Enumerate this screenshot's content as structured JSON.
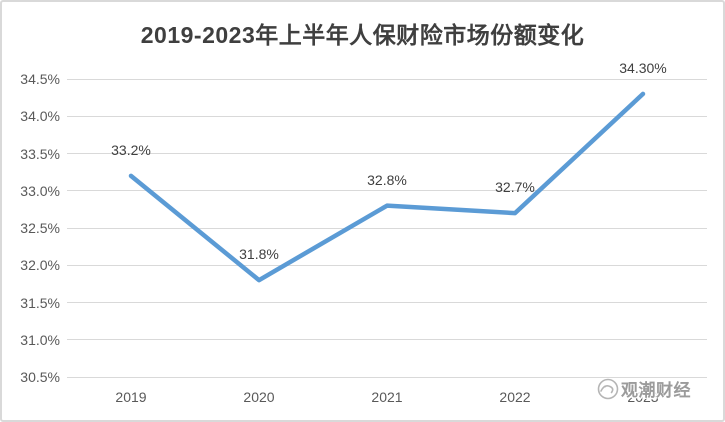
{
  "chart_data": {
    "type": "line",
    "title": "2019-2023年上半年人保财险市场份额变化",
    "categories": [
      "2019",
      "2020",
      "2021",
      "2022",
      "2023"
    ],
    "series": [
      {
        "values": [
          33.2,
          31.8,
          32.8,
          32.7,
          34.3
        ]
      }
    ],
    "data_labels": [
      "33.2%",
      "31.8%",
      "32.8%",
      "32.7%",
      "34.30%"
    ],
    "xlabel": "",
    "ylabel": "",
    "ylim": [
      30.5,
      34.5
    ],
    "y_tick_step": 0.5,
    "y_tick_labels": [
      "34.5%",
      "34.0%",
      "33.5%",
      "33.0%",
      "32.5%",
      "32.0%",
      "31.5%",
      "31.0%",
      "30.5%"
    ],
    "grid": true,
    "legend_position": "none",
    "colors": {
      "line": "#5B9BD5",
      "gridline": "#D9D9D9",
      "chart_border": "#D9D9D9",
      "axis_labels": "#595959",
      "data_labels": "#3F3F3F",
      "title": "#3F3F3F",
      "background": "#FFFFFF"
    }
  },
  "watermark": {
    "logo_icon": "wave-logo-icon",
    "text": "观潮财经"
  }
}
